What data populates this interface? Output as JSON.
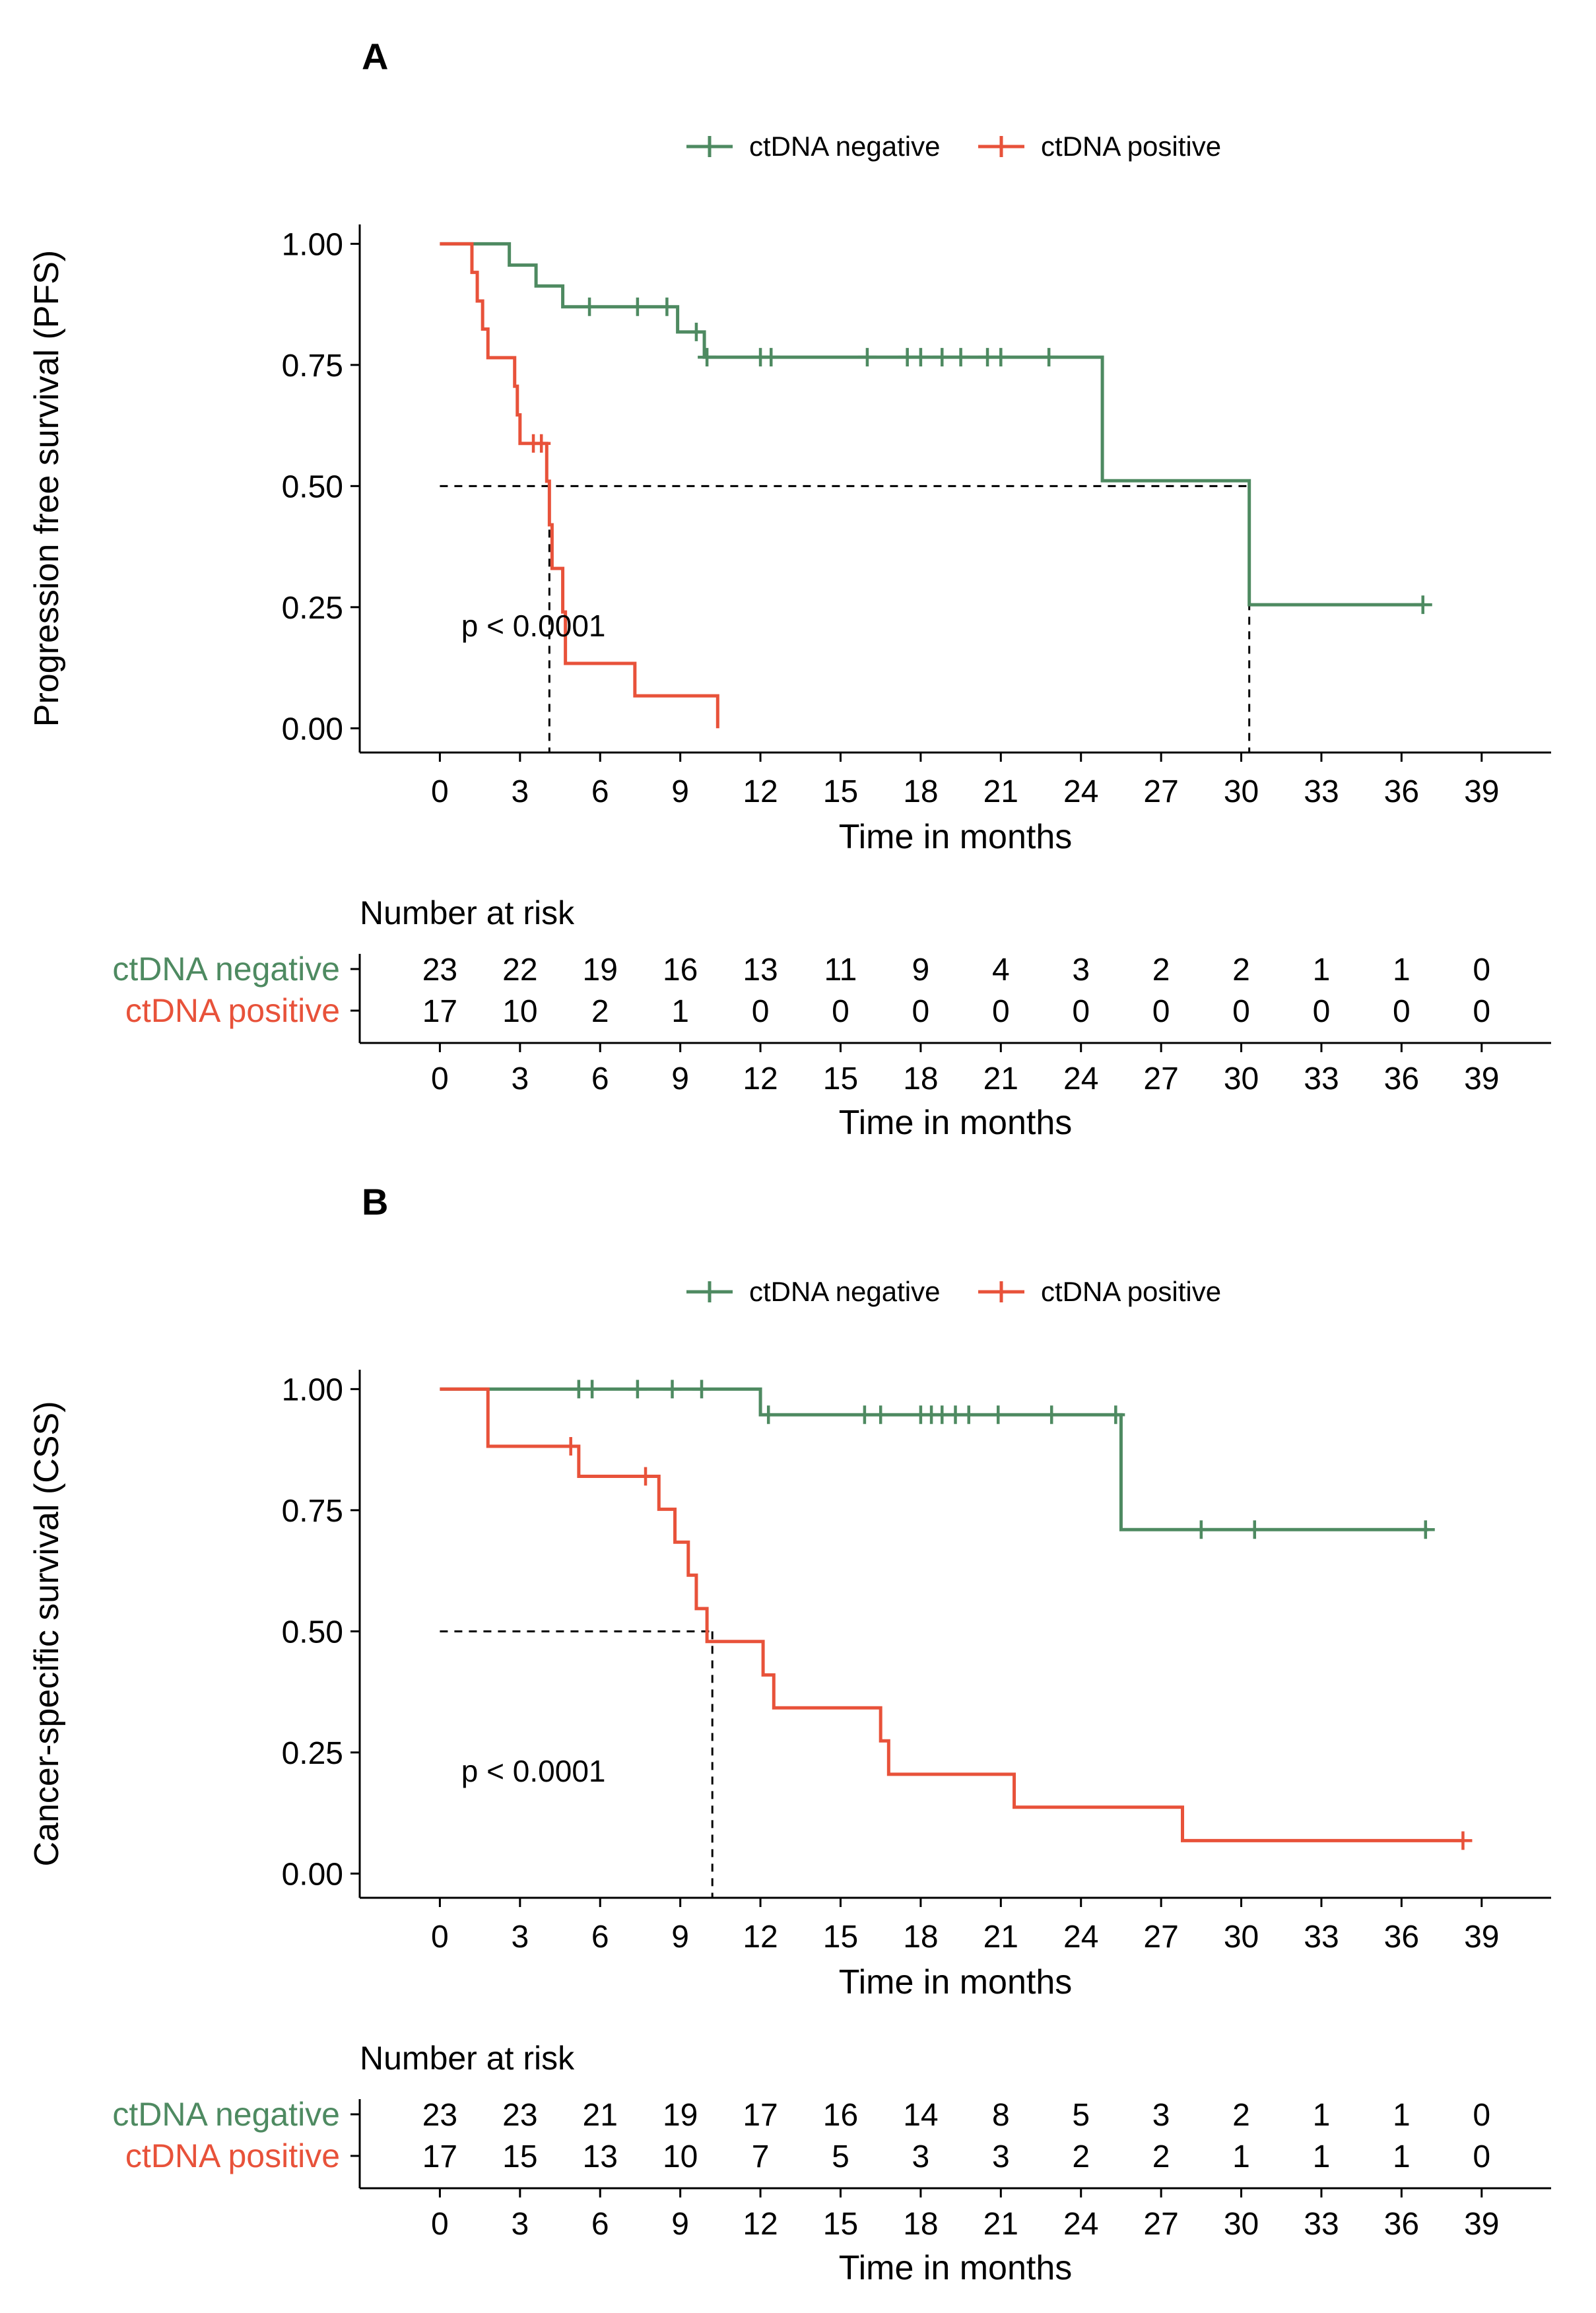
{
  "colors": {
    "neg": "#4e8a61",
    "pos": "#e8523a",
    "axis": "#000000"
  },
  "chart_data": [
    {
      "panel": "A",
      "type": "line",
      "subtype": "kaplan-meier",
      "legend": [
        "ctDNA negative",
        "ctDNA positive"
      ],
      "legend_position": "top",
      "ylabel": "Progression free survival (PFS)",
      "xlabel": "Time in months",
      "xlim": [
        -3,
        41.6
      ],
      "ylim": [
        -0.05,
        1.04
      ],
      "x_ticks": [
        "0",
        "3",
        "6",
        "9",
        "12",
        "15",
        "18",
        "21",
        "24",
        "27",
        "30",
        "33",
        "36",
        "39"
      ],
      "y_ticks": [
        "0.00",
        "0.25",
        "0.50",
        "0.75",
        "1.00"
      ],
      "annotation": "p < 0.0001",
      "annotation_pos": [
        0.8,
        0.19
      ],
      "median_line": {
        "y": 0.5,
        "x_values": [
          4.1,
          30.3
        ]
      },
      "series": [
        {
          "name": "ctDNA negative",
          "steps": [
            [
              0,
              1.0
            ],
            [
              2.6,
              0.956
            ],
            [
              3.6,
              0.913
            ],
            [
              4.6,
              0.87
            ],
            [
              8.9,
              0.818
            ],
            [
              9.9,
              0.766
            ],
            [
              24.8,
              0.511
            ],
            [
              30.3,
              0.255
            ],
            [
              36.8,
              0.255
            ]
          ],
          "censors": [
            [
              5.6,
              0.87
            ],
            [
              7.4,
              0.87
            ],
            [
              8.5,
              0.87
            ],
            [
              9.6,
              0.818
            ],
            [
              10.0,
              0.766
            ],
            [
              12.0,
              0.766
            ],
            [
              12.4,
              0.766
            ],
            [
              16.0,
              0.766
            ],
            [
              17.5,
              0.766
            ],
            [
              18.0,
              0.766
            ],
            [
              18.8,
              0.766
            ],
            [
              19.5,
              0.766
            ],
            [
              20.5,
              0.766
            ],
            [
              21.0,
              0.766
            ],
            [
              22.8,
              0.766
            ],
            [
              36.8,
              0.255
            ]
          ]
        },
        {
          "name": "ctDNA positive",
          "steps": [
            [
              0,
              1.0
            ],
            [
              1.2,
              0.941
            ],
            [
              1.4,
              0.882
            ],
            [
              1.6,
              0.824
            ],
            [
              1.8,
              0.765
            ],
            [
              2.8,
              0.706
            ],
            [
              2.9,
              0.647
            ],
            [
              3.0,
              0.588
            ],
            [
              4.0,
              0.51
            ],
            [
              4.1,
              0.42
            ],
            [
              4.2,
              0.33
            ],
            [
              4.6,
              0.24
            ],
            [
              4.7,
              0.134
            ],
            [
              7.3,
              0.067
            ],
            [
              10.4,
              0.0
            ]
          ],
          "censors": [
            [
              3.5,
              0.588
            ],
            [
              3.8,
              0.588
            ]
          ]
        }
      ],
      "risk_table": {
        "title": "Number at risk",
        "times": [
          "0",
          "3",
          "6",
          "9",
          "12",
          "15",
          "18",
          "21",
          "24",
          "27",
          "30",
          "33",
          "36",
          "39"
        ],
        "rows": [
          {
            "label": "ctDNA negative",
            "values": [
              "23",
              "22",
              "19",
              "16",
              "13",
              "11",
              "9",
              "4",
              "3",
              "2",
              "2",
              "1",
              "1",
              "0"
            ]
          },
          {
            "label": "ctDNA positive",
            "values": [
              "17",
              "10",
              "2",
              "1",
              "0",
              "0",
              "0",
              "0",
              "0",
              "0",
              "0",
              "0",
              "0",
              "0"
            ]
          }
        ],
        "xlabel": "Time in months"
      }
    },
    {
      "panel": "B",
      "type": "line",
      "subtype": "kaplan-meier",
      "legend": [
        "ctDNA negative",
        "ctDNA positive"
      ],
      "legend_position": "top",
      "ylabel": "Cancer-specific survival (CSS)",
      "xlabel": "Time in months",
      "xlim": [
        -3,
        41.6
      ],
      "ylim": [
        -0.05,
        1.04
      ],
      "x_ticks": [
        "0",
        "3",
        "6",
        "9",
        "12",
        "15",
        "18",
        "21",
        "24",
        "27",
        "30",
        "33",
        "36",
        "39"
      ],
      "y_ticks": [
        "0.00",
        "0.25",
        "0.50",
        "0.75",
        "1.00"
      ],
      "annotation": "p < 0.0001",
      "annotation_pos": [
        0.8,
        0.19
      ],
      "median_line": {
        "y": 0.5,
        "x_values": [
          10.2
        ]
      },
      "series": [
        {
          "name": "ctDNA negative",
          "steps": [
            [
              0,
              1.0
            ],
            [
              12.0,
              0.947
            ],
            [
              25.5,
              0.71
            ],
            [
              37.0,
              0.71
            ]
          ],
          "censors": [
            [
              5.2,
              1.0
            ],
            [
              5.7,
              1.0
            ],
            [
              7.4,
              1.0
            ],
            [
              8.7,
              1.0
            ],
            [
              9.8,
              1.0
            ],
            [
              12.3,
              0.947
            ],
            [
              15.9,
              0.947
            ],
            [
              16.5,
              0.947
            ],
            [
              18.0,
              0.947
            ],
            [
              18.4,
              0.947
            ],
            [
              18.8,
              0.947
            ],
            [
              19.3,
              0.947
            ],
            [
              19.8,
              0.947
            ],
            [
              20.9,
              0.947
            ],
            [
              22.9,
              0.947
            ],
            [
              25.3,
              0.947
            ],
            [
              28.5,
              0.71
            ],
            [
              30.5,
              0.71
            ],
            [
              36.9,
              0.71
            ]
          ]
        },
        {
          "name": "ctDNA positive",
          "steps": [
            [
              0,
              1.0
            ],
            [
              1.8,
              0.882
            ],
            [
              5.2,
              0.82
            ],
            [
              8.2,
              0.752
            ],
            [
              8.8,
              0.684
            ],
            [
              9.3,
              0.616
            ],
            [
              9.6,
              0.547
            ],
            [
              10.0,
              0.479
            ],
            [
              12.1,
              0.41
            ],
            [
              12.5,
              0.342
            ],
            [
              16.5,
              0.274
            ],
            [
              16.8,
              0.205
            ],
            [
              21.5,
              0.137
            ],
            [
              27.8,
              0.068
            ],
            [
              38.3,
              0.068
            ]
          ],
          "censors": [
            [
              4.9,
              0.882
            ],
            [
              7.7,
              0.82
            ],
            [
              38.3,
              0.068
            ]
          ]
        }
      ],
      "risk_table": {
        "title": "Number at risk",
        "times": [
          "0",
          "3",
          "6",
          "9",
          "12",
          "15",
          "18",
          "21",
          "24",
          "27",
          "30",
          "33",
          "36",
          "39"
        ],
        "rows": [
          {
            "label": "ctDNA negative",
            "values": [
              "23",
              "23",
              "21",
              "19",
              "17",
              "16",
              "14",
              "8",
              "5",
              "3",
              "2",
              "1",
              "1",
              "0"
            ]
          },
          {
            "label": "ctDNA positive",
            "values": [
              "17",
              "15",
              "13",
              "10",
              "7",
              "5",
              "3",
              "3",
              "2",
              "2",
              "1",
              "1",
              "1",
              "0"
            ]
          }
        ],
        "xlabel": "Time in months"
      }
    }
  ]
}
